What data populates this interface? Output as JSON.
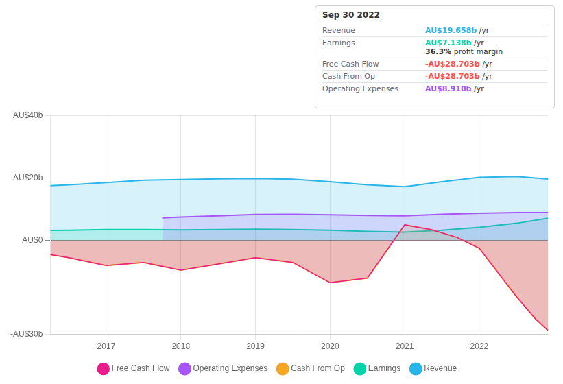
{
  "chart_data": {
    "type": "line",
    "xlim": [
      2016.25,
      2022.92
    ],
    "xticks": [
      2017,
      2018,
      2019,
      2020,
      2021,
      2022
    ],
    "ylim": [
      -30,
      40
    ],
    "yticks": [
      {
        "value": -30,
        "label": "-AU$30b"
      },
      {
        "value": 0,
        "label": "AU$0"
      },
      {
        "value": 20,
        "label": "AU$20b"
      },
      {
        "value": 40,
        "label": "AU$40b"
      }
    ],
    "grid": true,
    "legend": "bottom",
    "series": [
      {
        "name": "Revenue",
        "color": "#29b5e8",
        "type": "area",
        "x": [
          2016.25,
          2016.5,
          2017.0,
          2017.5,
          2018.0,
          2018.5,
          2019.0,
          2019.5,
          2020.0,
          2020.5,
          2021.0,
          2021.5,
          2022.0,
          2022.5,
          2022.92
        ],
        "values": [
          17.5,
          17.8,
          18.5,
          19.3,
          19.5,
          19.7,
          19.8,
          19.6,
          18.8,
          17.8,
          17.2,
          18.8,
          20.2,
          20.5,
          19.658
        ]
      },
      {
        "name": "Earnings",
        "color": "#00d4aa",
        "type": "area",
        "x": [
          2016.25,
          2016.5,
          2017.0,
          2017.5,
          2018.0,
          2018.5,
          2019.0,
          2019.5,
          2020.0,
          2020.5,
          2021.0,
          2021.5,
          2022.0,
          2022.5,
          2022.92
        ],
        "values": [
          3.2,
          3.3,
          3.5,
          3.5,
          3.4,
          3.5,
          3.6,
          3.5,
          3.3,
          2.9,
          2.7,
          3.3,
          4.2,
          5.5,
          7.138
        ]
      },
      {
        "name": "Free Cash Flow",
        "color": "#e91e8c",
        "type": "line",
        "x": [
          2016.25,
          2016.5,
          2017.0,
          2017.5,
          2018.0,
          2018.5,
          2019.0,
          2019.5,
          2020.0,
          2020.5,
          2021.0,
          2021.35,
          2021.7,
          2022.0,
          2022.5,
          2022.75,
          2022.92
        ],
        "values": [
          -4.5,
          -5.5,
          -8.0,
          -7.0,
          -9.5,
          -7.5,
          -5.5,
          -7.0,
          -13.5,
          -12.0,
          5.0,
          3.5,
          1.0,
          -2.5,
          -18.0,
          -25.0,
          -28.703
        ]
      },
      {
        "name": "Cash From Op",
        "color": "#f5a623",
        "type": "area",
        "x": [
          2016.25,
          2016.5,
          2017.0,
          2017.5,
          2018.0,
          2018.5,
          2019.0,
          2019.5,
          2020.0,
          2020.5,
          2021.0,
          2021.35,
          2021.7,
          2022.0,
          2022.5,
          2022.75,
          2022.92
        ],
        "values": [
          -4.5,
          -5.5,
          -8.0,
          -7.0,
          -9.5,
          -7.5,
          -5.5,
          -7.0,
          -13.5,
          -12.0,
          5.0,
          3.5,
          1.0,
          -2.5,
          -18.0,
          -25.0,
          -28.703
        ]
      },
      {
        "name": "Operating Expenses",
        "color": "#a855f7",
        "type": "area",
        "x": [
          2017.75,
          2018.0,
          2018.5,
          2019.0,
          2019.5,
          2020.0,
          2020.5,
          2021.0,
          2021.5,
          2022.0,
          2022.5,
          2022.92
        ],
        "values": [
          7.2,
          7.5,
          7.9,
          8.3,
          8.4,
          8.2,
          8.0,
          7.9,
          8.4,
          8.7,
          8.9,
          8.91
        ]
      }
    ],
    "annotations": [
      {
        "title": "Sep 30 2022",
        "rows": [
          {
            "label": "Revenue",
            "text": "AU$19.658b",
            "unit": "/yr",
            "color": "#29b5e8"
          },
          {
            "label": "Earnings",
            "text": "AU$7.138b",
            "unit": "/yr",
            "color": "#00d4aa",
            "note_value": "36.3%",
            "note": " profit margin"
          },
          {
            "label": "Free Cash Flow",
            "text": "-AU$28.703b",
            "unit": "/yr",
            "color": "#ff4d4d"
          },
          {
            "label": "Cash From Op",
            "text": "-AU$28.703b",
            "unit": "/yr",
            "color": "#ff4d4d"
          },
          {
            "label": "Operating Expenses",
            "text": "AU$8.910b",
            "unit": "/yr",
            "color": "#a855f7"
          }
        ]
      }
    ]
  }
}
